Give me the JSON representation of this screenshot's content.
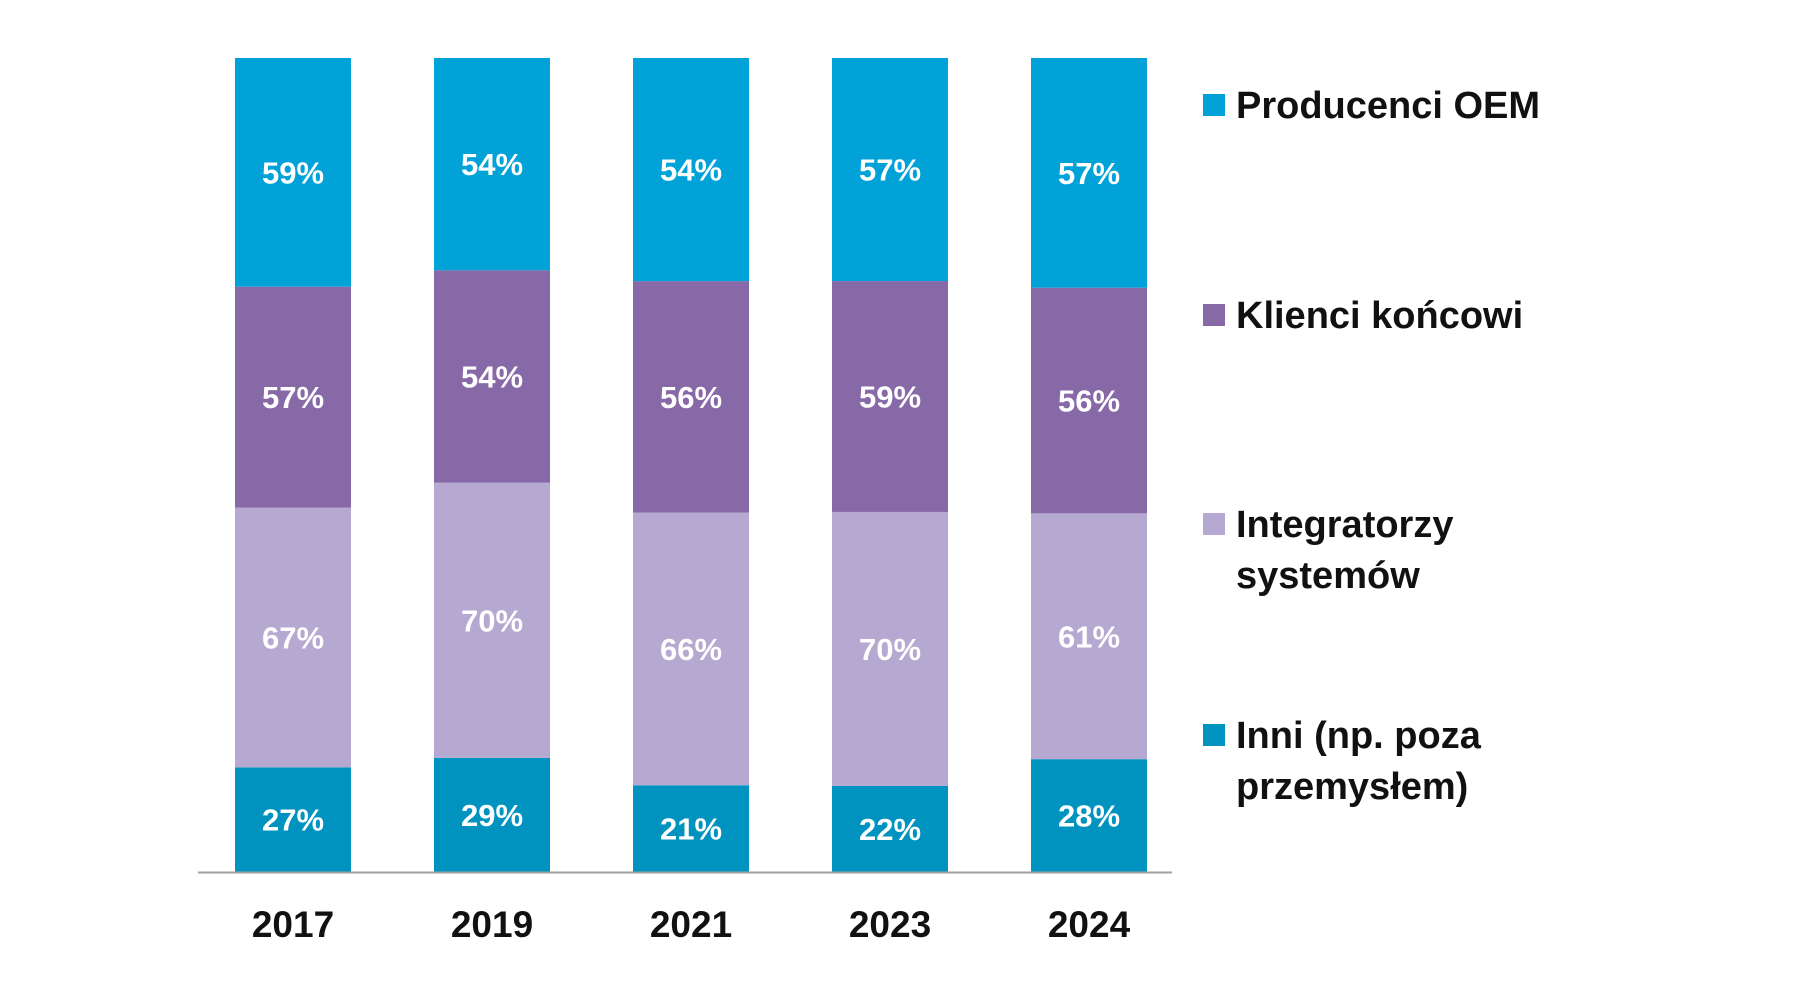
{
  "chart_data": {
    "type": "bar",
    "stacked": true,
    "categories": [
      "2017",
      "2019",
      "2021",
      "2023",
      "2024"
    ],
    "series": [
      {
        "name": "Inni (np. poza przemysłem)",
        "name_lines": [
          "Inni (np. poza",
          "przemysłem)"
        ],
        "color": "#0093BF",
        "values": [
          27,
          29,
          21,
          22,
          28
        ],
        "labels": [
          "27%",
          "29%",
          "21%",
          "22%",
          "28%"
        ]
      },
      {
        "name": "Integratorzy systemów",
        "name_lines": [
          "Integratorzy",
          "systemów"
        ],
        "color": "#B5A9D1",
        "values": [
          67,
          70,
          66,
          70,
          61
        ],
        "labels": [
          "67%",
          "70%",
          "66%",
          "70%",
          "61%"
        ]
      },
      {
        "name": "Klienci końcowi",
        "name_lines": [
          "Klienci końcowi"
        ],
        "color": "#8769A7",
        "values": [
          57,
          54,
          56,
          59,
          56
        ],
        "labels": [
          "57%",
          "54%",
          "56%",
          "59%",
          "56%"
        ]
      },
      {
        "name": "Producenci OEM",
        "name_lines": [
          "Producenci OEM"
        ],
        "color": "#00A2D8",
        "values": [
          59,
          54,
          54,
          57,
          57
        ],
        "labels": [
          "59%",
          "54%",
          "54%",
          "57%",
          "57%"
        ]
      }
    ],
    "normalized_to_100": true,
    "legend_position": "right",
    "grid": false,
    "axis_line_color": "#A0A0A0"
  }
}
